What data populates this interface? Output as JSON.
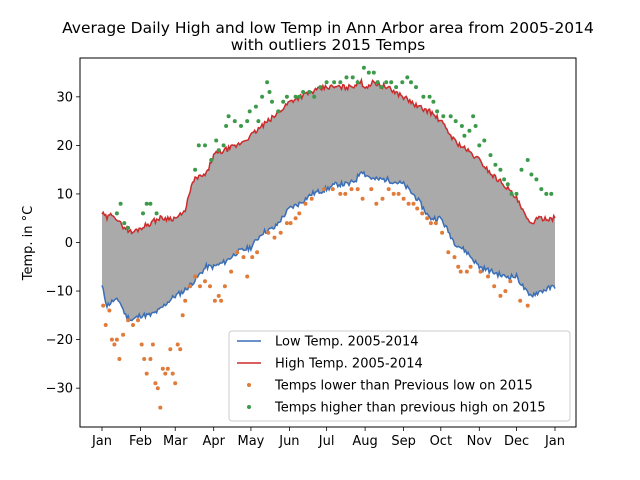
{
  "chart_data": {
    "type": "line",
    "title_line1": "Average Daily High and low Temp in Ann Arbor area from 2005-2014",
    "title_line2": "with outliers 2015 Temps",
    "ylabel": "Temp. in °C",
    "xlabel": "",
    "xlim": [
      1,
      366
    ],
    "ylim": [
      -38,
      38
    ],
    "x_ticks": [
      1,
      32,
      60,
      91,
      121,
      152,
      182,
      213,
      244,
      274,
      305,
      335,
      366
    ],
    "x_tick_labels": [
      "Jan",
      "Feb",
      "Mar",
      "Apr",
      "May",
      "Jun",
      "Jul",
      "Aug",
      "Sep",
      "Oct",
      "Nov",
      "Dec",
      "Jan"
    ],
    "y_ticks": [
      -30,
      -20,
      -10,
      0,
      10,
      20,
      30
    ],
    "y_tick_labels": [
      "−30",
      "−20",
      "−10",
      "0",
      "10",
      "20",
      "30"
    ],
    "legend_position": "lower-right",
    "fill_between": {
      "color": "#aaaaaa"
    },
    "series": [
      {
        "name": "Low Temp. 2005-2014",
        "kind": "line",
        "color": "#3a6eb5",
        "points": [
          [
            1,
            -9
          ],
          [
            5,
            -13
          ],
          [
            10,
            -12
          ],
          [
            15,
            -12
          ],
          [
            20,
            -15
          ],
          [
            25,
            -16
          ],
          [
            32,
            -15
          ],
          [
            40,
            -15
          ],
          [
            47,
            -14
          ],
          [
            55,
            -12
          ],
          [
            60,
            -11
          ],
          [
            67,
            -10
          ],
          [
            75,
            -8
          ],
          [
            85,
            -5
          ],
          [
            91,
            -5
          ],
          [
            100,
            -4
          ],
          [
            110,
            -2
          ],
          [
            121,
            -1
          ],
          [
            130,
            2
          ],
          [
            140,
            3
          ],
          [
            152,
            7
          ],
          [
            160,
            8
          ],
          [
            170,
            10
          ],
          [
            182,
            11
          ],
          [
            190,
            12
          ],
          [
            200,
            12
          ],
          [
            206,
            13
          ],
          [
            210,
            15
          ],
          [
            213,
            14
          ],
          [
            220,
            13
          ],
          [
            230,
            13
          ],
          [
            244,
            12
          ],
          [
            255,
            9
          ],
          [
            265,
            5
          ],
          [
            274,
            5
          ],
          [
            285,
            0
          ],
          [
            295,
            -2
          ],
          [
            305,
            -5
          ],
          [
            315,
            -6
          ],
          [
            325,
            -7
          ],
          [
            335,
            -7
          ],
          [
            345,
            -11
          ],
          [
            355,
            -10
          ],
          [
            366,
            -9
          ]
        ]
      },
      {
        "name": "High Temp. 2005-2014",
        "kind": "line",
        "color": "#cc2b2b",
        "points": [
          [
            1,
            6
          ],
          [
            5,
            5
          ],
          [
            10,
            6
          ],
          [
            15,
            4
          ],
          [
            20,
            3
          ],
          [
            25,
            2
          ],
          [
            32,
            3
          ],
          [
            40,
            4
          ],
          [
            47,
            5
          ],
          [
            55,
            5
          ],
          [
            60,
            5
          ],
          [
            67,
            6
          ],
          [
            75,
            13
          ],
          [
            85,
            14
          ],
          [
            91,
            18
          ],
          [
            100,
            19
          ],
          [
            110,
            20
          ],
          [
            121,
            22
          ],
          [
            130,
            24
          ],
          [
            140,
            26
          ],
          [
            152,
            29
          ],
          [
            160,
            30
          ],
          [
            170,
            31
          ],
          [
            182,
            32
          ],
          [
            190,
            32
          ],
          [
            200,
            32
          ],
          [
            210,
            33
          ],
          [
            213,
            32
          ],
          [
            220,
            33
          ],
          [
            230,
            32
          ],
          [
            244,
            30
          ],
          [
            255,
            28
          ],
          [
            265,
            27
          ],
          [
            274,
            25
          ],
          [
            285,
            21
          ],
          [
            295,
            19
          ],
          [
            305,
            17
          ],
          [
            315,
            14
          ],
          [
            325,
            12
          ],
          [
            335,
            9
          ],
          [
            345,
            4
          ],
          [
            355,
            5
          ],
          [
            366,
            5
          ]
        ]
      },
      {
        "name": "Temps lower than Previous low on 2015",
        "kind": "scatter",
        "color": "#e07b39",
        "points": [
          [
            2,
            -13
          ],
          [
            4,
            -17
          ],
          [
            7,
            -14
          ],
          [
            9,
            -20
          ],
          [
            11,
            -21
          ],
          [
            13,
            -20
          ],
          [
            15,
            -24
          ],
          [
            18,
            -19
          ],
          [
            22,
            -16
          ],
          [
            26,
            -17
          ],
          [
            30,
            -16
          ],
          [
            33,
            -21
          ],
          [
            35,
            -24
          ],
          [
            37,
            -27
          ],
          [
            40,
            -24
          ],
          [
            42,
            -21
          ],
          [
            44,
            -29
          ],
          [
            46,
            -30
          ],
          [
            48,
            -34
          ],
          [
            50,
            -26
          ],
          [
            52,
            -27
          ],
          [
            54,
            -26
          ],
          [
            56,
            -22
          ],
          [
            58,
            -27
          ],
          [
            60,
            -29
          ],
          [
            62,
            -21
          ],
          [
            64,
            -22
          ],
          [
            66,
            -15
          ],
          [
            68,
            -12
          ],
          [
            72,
            -9
          ],
          [
            76,
            -7
          ],
          [
            80,
            -9
          ],
          [
            84,
            -8
          ],
          [
            88,
            -9
          ],
          [
            92,
            -12
          ],
          [
            95,
            -11
          ],
          [
            97,
            -12
          ],
          [
            100,
            -9
          ],
          [
            105,
            -6
          ],
          [
            110,
            -2
          ],
          [
            115,
            -3
          ],
          [
            118,
            -7
          ],
          [
            122,
            -3
          ],
          [
            126,
            -2
          ],
          [
            135,
            2
          ],
          [
            140,
            1
          ],
          [
            145,
            2
          ],
          [
            150,
            4
          ],
          [
            153,
            4
          ],
          [
            157,
            5
          ],
          [
            160,
            6
          ],
          [
            165,
            8
          ],
          [
            170,
            9
          ],
          [
            180,
            11
          ],
          [
            187,
            11
          ],
          [
            193,
            10
          ],
          [
            197,
            10
          ],
          [
            202,
            11
          ],
          [
            207,
            11
          ],
          [
            211,
            9
          ],
          [
            218,
            11
          ],
          [
            222,
            8
          ],
          [
            227,
            9
          ],
          [
            232,
            11
          ],
          [
            236,
            10
          ],
          [
            240,
            10
          ],
          [
            244,
            9
          ],
          [
            248,
            8
          ],
          [
            252,
            8
          ],
          [
            255,
            7
          ],
          [
            259,
            6
          ],
          [
            263,
            5
          ],
          [
            266,
            4
          ],
          [
            270,
            4
          ],
          [
            275,
            2
          ],
          [
            280,
            -2
          ],
          [
            285,
            -3
          ],
          [
            288,
            -5
          ],
          [
            290,
            -6
          ],
          [
            295,
            -6
          ],
          [
            298,
            -5
          ],
          [
            306,
            -6
          ],
          [
            312,
            -7
          ],
          [
            317,
            -9
          ],
          [
            322,
            -11
          ],
          [
            326,
            -10
          ],
          [
            330,
            -8
          ],
          [
            338,
            -12
          ],
          [
            344,
            -13
          ]
        ]
      },
      {
        "name": "Temps higher than previous high on 2015",
        "kind": "scatter",
        "color": "#3c9a4a",
        "points": [
          [
            13,
            6
          ],
          [
            16,
            8
          ],
          [
            19,
            4
          ],
          [
            22,
            3
          ],
          [
            34,
            6
          ],
          [
            37,
            8
          ],
          [
            40,
            8
          ],
          [
            45,
            6
          ],
          [
            76,
            15
          ],
          [
            79,
            20
          ],
          [
            84,
            20
          ],
          [
            89,
            17
          ],
          [
            93,
            21
          ],
          [
            95,
            19
          ],
          [
            99,
            20
          ],
          [
            101,
            24
          ],
          [
            103,
            26
          ],
          [
            108,
            25
          ],
          [
            113,
            24
          ],
          [
            118,
            25
          ],
          [
            120,
            27
          ],
          [
            125,
            28
          ],
          [
            127,
            25
          ],
          [
            130,
            30
          ],
          [
            134,
            33
          ],
          [
            136,
            31
          ],
          [
            138,
            29
          ],
          [
            143,
            27
          ],
          [
            147,
            29
          ],
          [
            150,
            30
          ],
          [
            157,
            30
          ],
          [
            160,
            30
          ],
          [
            163,
            31
          ],
          [
            168,
            31
          ],
          [
            172,
            30
          ],
          [
            177,
            32
          ],
          [
            182,
            33
          ],
          [
            188,
            33
          ],
          [
            193,
            33
          ],
          [
            198,
            34
          ],
          [
            203,
            34
          ],
          [
            207,
            33
          ],
          [
            212,
            36
          ],
          [
            216,
            35
          ],
          [
            220,
            35
          ],
          [
            223,
            33
          ],
          [
            226,
            32
          ],
          [
            230,
            33
          ],
          [
            234,
            33
          ],
          [
            238,
            32
          ],
          [
            243,
            33
          ],
          [
            247,
            34
          ],
          [
            250,
            33
          ],
          [
            254,
            32
          ],
          [
            260,
            30
          ],
          [
            265,
            30
          ],
          [
            268,
            29
          ],
          [
            271,
            27
          ],
          [
            276,
            26
          ],
          [
            282,
            26
          ],
          [
            286,
            25
          ],
          [
            291,
            24
          ],
          [
            293,
            22
          ],
          [
            297,
            23
          ],
          [
            300,
            26
          ],
          [
            302,
            24
          ],
          [
            305,
            20
          ],
          [
            309,
            21
          ],
          [
            314,
            18
          ],
          [
            318,
            16
          ],
          [
            322,
            15
          ],
          [
            325,
            13
          ],
          [
            328,
            12
          ],
          [
            331,
            10
          ],
          [
            335,
            10
          ],
          [
            339,
            15
          ],
          [
            344,
            17
          ],
          [
            347,
            14
          ],
          [
            351,
            13
          ],
          [
            355,
            11
          ],
          [
            359,
            10
          ],
          [
            363,
            10
          ]
        ]
      }
    ]
  }
}
